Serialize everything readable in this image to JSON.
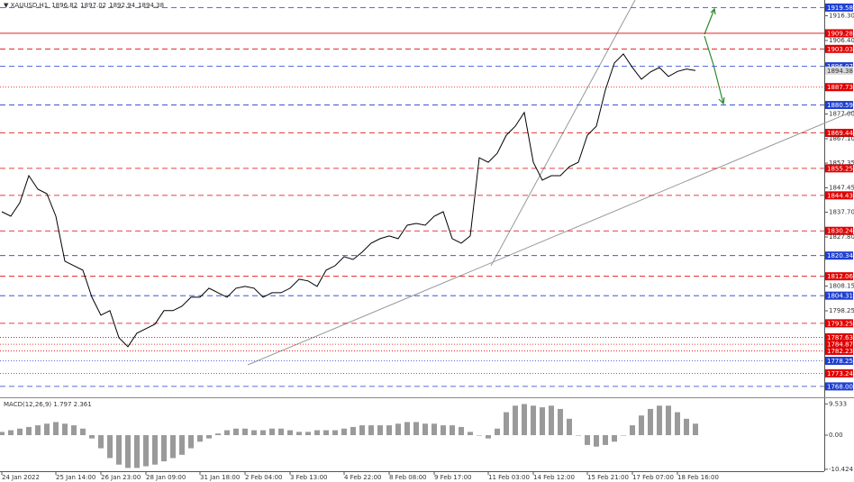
{
  "chart_data": [
    {
      "type": "line",
      "title": "XAUUSD,H1",
      "quote": [
        1896.82,
        1897.02,
        1892.94,
        1894.38
      ],
      "color": "#000000",
      "categories": [
        "24 Jan 2022",
        null,
        null,
        null,
        null,
        null,
        "25 Jan 14:00",
        null,
        null,
        null,
        null,
        "26 Jan 23:00",
        null,
        null,
        null,
        null,
        "28 Jan 09:00",
        null,
        null,
        null,
        null,
        null,
        "31 Jan 18:00",
        null,
        null,
        null,
        null,
        "2 Feb 04:00",
        null,
        null,
        null,
        null,
        "3 Feb 13:00",
        null,
        null,
        null,
        null,
        null,
        "4 Feb 22:00",
        null,
        null,
        null,
        null,
        "8 Feb 08:00",
        null,
        null,
        null,
        null,
        "9 Feb 17:00",
        null,
        null,
        null,
        null,
        null,
        "11 Feb 03:00",
        null,
        null,
        null,
        null,
        "14 Feb 12:00",
        null,
        null,
        null,
        null,
        null,
        "15 Feb 21:00",
        null,
        null,
        null,
        null,
        "17 Feb 07:00",
        null,
        null,
        null,
        null,
        "18 Feb 16:00",
        null,
        null
      ],
      "values": [
        1837.9,
        1836.1,
        1841.5,
        1852.3,
        1846.9,
        1845.1,
        1836.1,
        1818.1,
        1816.3,
        1814.5,
        1803.7,
        1796.5,
        1798.3,
        1787.5,
        1783.9,
        1789.3,
        1791.1,
        1792.9,
        1798.3,
        1798.3,
        1800.1,
        1803.7,
        1803.7,
        1807.3,
        1805.5,
        1803.7,
        1807.3,
        1808.0,
        1807.3,
        1803.7,
        1805.5,
        1805.5,
        1807.3,
        1810.9,
        1810.2,
        1808.0,
        1814.5,
        1816.3,
        1819.9,
        1818.8,
        1821.7,
        1825.3,
        1827.1,
        1828.2,
        1827.1,
        1832.5,
        1833.2,
        1832.5,
        1836.1,
        1837.9,
        1827.1,
        1825.3,
        1828.2,
        1859.5,
        1857.7,
        1861.3,
        1868.5,
        1872.1,
        1877.6,
        1857.7,
        1850.5,
        1852.3,
        1852.3,
        1855.9,
        1857.7,
        1868.5,
        1872.1,
        1886.6,
        1897.4,
        1901.0,
        1895.6,
        1890.9,
        1893.8,
        1895.6,
        1892.0,
        1894.0,
        1895.0,
        1894.38
      ],
      "ylim": [
        1764.0,
        1922.6
      ],
      "yticks": [
        {
          "value": 1916.3,
          "label": "1916.30"
        },
        {
          "value": 1906.4,
          "label": "1906.40"
        },
        {
          "value": 1877.0,
          "label": "1877.00"
        },
        {
          "value": 1867.1,
          "label": "1867.10"
        },
        1857.35,
        1847.45,
        {
          "value": 1837.7,
          "label": "1837.70"
        },
        {
          "value": 1827.8,
          "label": "1827.80"
        },
        1808.15,
        1798.25
      ],
      "levels": [
        {
          "value": 1919.58,
          "color": "#1f3fd0",
          "dash": "dashed"
        },
        {
          "value": 1909.28,
          "color": "#e00000",
          "dash": "solid"
        },
        {
          "value": 1903.03,
          "color": "#e00000",
          "dash": "dashed"
        },
        {
          "value": 1896.07,
          "color": "#1f3fd0",
          "dash": "dashed"
        },
        {
          "value": 1887.73,
          "color": "#e00000",
          "dash": "dotted"
        },
        {
          "value": 1880.59,
          "color": "#1f3fd0",
          "dash": "dashed"
        },
        {
          "value": 1869.44,
          "color": "#e00000",
          "dash": "dashed"
        },
        {
          "value": 1855.25,
          "color": "#e00000",
          "dash": "dashed"
        },
        {
          "value": 1844.43,
          "color": "#e00000",
          "dash": "dashed"
        },
        {
          "value": 1830.24,
          "color": "#e00000",
          "dash": "dashed"
        },
        {
          "value": 1820.34,
          "color": "#1f3fd0",
          "dash": "dashed"
        },
        {
          "value": 1812.06,
          "color": "#e00000",
          "dash": "dashed"
        },
        {
          "value": 1804.31,
          "color": "#1f3fd0",
          "dash": "dashed"
        },
        {
          "value": 1793.25,
          "color": "#e00000",
          "dash": "dashed"
        },
        {
          "value": 1787.63,
          "color": "#e00000",
          "dash": "dotted"
        },
        {
          "value": 1784.87,
          "color": "#e00000",
          "dash": "dotted"
        },
        {
          "value": 1782.23,
          "color": "#e00000",
          "dash": "dotted"
        },
        {
          "value": 1778.25,
          "color": "#1f3fd0",
          "dash": "dotted"
        },
        {
          "value": 1773.24,
          "color": "#e00000",
          "dash": "dotted"
        },
        {
          "value": 1768.0,
          "label": "1768.00",
          "color": "#1f3fd0",
          "dash": "dashed"
        }
      ]
    },
    {
      "type": "bar",
      "title": "MACD(12,26,9) 1.797 2.361",
      "color": "#9a9a9a",
      "values": [
        1,
        1.5,
        2,
        2.5,
        3,
        3.5,
        4,
        3.5,
        3,
        2,
        -1,
        -4,
        -7,
        -9,
        -10,
        -10,
        -9.5,
        -9,
        -8,
        -7,
        -6,
        -4,
        -2,
        -1,
        0.5,
        1.5,
        2,
        2,
        1.5,
        1.5,
        2,
        2,
        1.5,
        1,
        1,
        1.5,
        1.5,
        1.5,
        2,
        2.5,
        3,
        3,
        3,
        3,
        3.5,
        4,
        4,
        3.5,
        3.5,
        3,
        3,
        2.5,
        1,
        0,
        -1,
        2,
        7,
        9,
        9.5,
        9,
        8.5,
        9,
        8,
        5,
        0,
        -3,
        -3.5,
        -3,
        -2,
        0,
        3,
        6,
        8,
        9,
        9,
        7,
        5,
        3.5
      ],
      "ylim": [
        -11,
        11
      ],
      "yticks": [
        9.533,
        {
          "value": 0,
          "label": "0.00"
        },
        -10.424
      ]
    }
  ]
}
